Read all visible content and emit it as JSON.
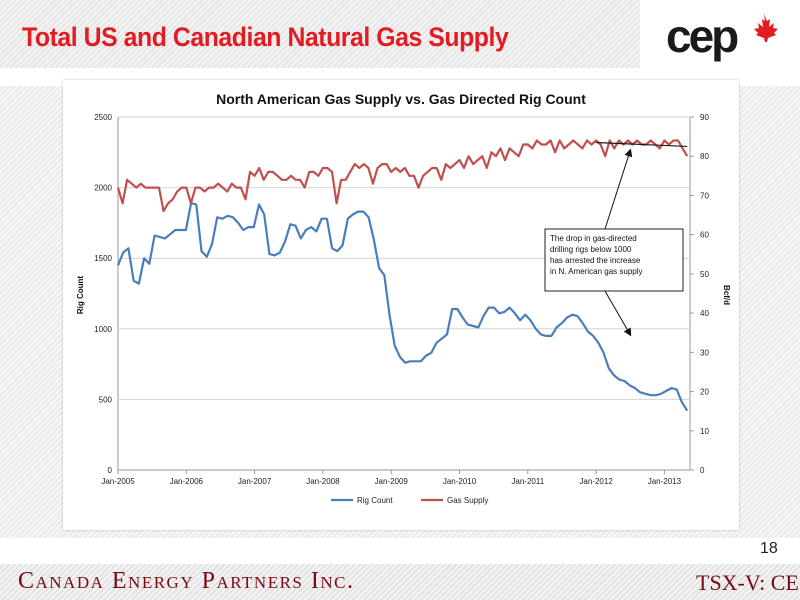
{
  "slide": {
    "title": "Total US and Canadian Natural Gas Supply",
    "logo_text": "cep",
    "page_number": "18",
    "company": "Canada Energy Partners Inc.",
    "ticker": "TSX-V: CE",
    "colors": {
      "title": "#e31b23",
      "company": "#7a0a10",
      "logo": "#1a1a1a",
      "maple_leaf": "#e31b23"
    }
  },
  "chart_data": {
    "type": "line",
    "title": "North American Gas Supply vs. Gas Directed Rig Count",
    "ylabel": "Rig Count",
    "y2label": "Bcf/d",
    "ylim": [
      0,
      2500
    ],
    "y2lim": [
      0,
      90
    ],
    "yticks": [
      "0",
      "500",
      "1000",
      "1500",
      "2000",
      "2500"
    ],
    "y2ticks": [
      "0",
      "10",
      "20",
      "30",
      "40",
      "50",
      "60",
      "70",
      "80",
      "90"
    ],
    "xticks": [
      "Jan-2005",
      "Jan-2006",
      "Jan-2007",
      "Jan-2008",
      "Jan-2009",
      "Jan-2010",
      "Jan-2011",
      "Jan-2012",
      "Jan-2013"
    ],
    "grid": "horizontal",
    "legend_position": "bottom",
    "start_month": "Jan-2005",
    "series": [
      {
        "name": "Rig Count",
        "axis": "left",
        "color": "#4a7ebb",
        "values": [
          1450,
          1540,
          1570,
          1340,
          1320,
          1500,
          1460,
          1660,
          1650,
          1640,
          1670,
          1700,
          1700,
          1700,
          1890,
          1880,
          1550,
          1510,
          1600,
          1790,
          1780,
          1800,
          1790,
          1750,
          1700,
          1720,
          1720,
          1880,
          1810,
          1530,
          1520,
          1540,
          1620,
          1740,
          1730,
          1640,
          1700,
          1720,
          1690,
          1780,
          1780,
          1570,
          1550,
          1590,
          1780,
          1810,
          1830,
          1830,
          1790,
          1630,
          1430,
          1380,
          1100,
          880,
          800,
          760,
          770,
          770,
          770,
          810,
          830,
          900,
          930,
          960,
          1140,
          1140,
          1080,
          1030,
          1020,
          1010,
          1090,
          1150,
          1150,
          1110,
          1120,
          1150,
          1110,
          1060,
          1100,
          1060,
          1000,
          960,
          950,
          950,
          1010,
          1040,
          1080,
          1100,
          1090,
          1040,
          980,
          950,
          900,
          830,
          720,
          670,
          640,
          630,
          600,
          580,
          550,
          540,
          530,
          530,
          540,
          560,
          580,
          570,
          480,
          420
        ]
      },
      {
        "name": "Gas Supply",
        "axis": "right",
        "color": "#c0504d",
        "values": [
          72,
          68,
          74,
          73,
          72,
          73,
          72,
          72,
          72,
          72,
          66,
          68,
          69,
          71,
          72,
          72,
          68,
          72,
          72,
          71,
          72,
          72,
          73,
          72,
          71,
          73,
          72,
          72,
          69,
          76,
          75,
          77,
          74,
          76,
          76,
          75,
          74,
          74,
          75,
          74,
          74,
          72,
          76,
          76,
          75,
          77,
          77,
          76,
          68,
          74,
          74,
          76,
          78,
          77,
          78,
          77,
          73,
          77,
          78,
          78,
          76,
          77,
          76,
          77,
          75,
          75,
          72,
          75,
          76,
          77,
          77,
          74,
          78,
          77,
          78,
          79,
          77,
          80,
          78,
          79,
          80,
          77,
          81,
          80,
          82,
          79,
          82,
          81,
          80,
          83,
          83,
          82,
          84,
          83,
          83,
          84,
          81,
          84,
          82,
          83,
          84,
          83,
          82,
          84,
          83,
          84,
          83,
          80,
          84,
          82,
          84,
          83,
          84,
          83,
          84,
          83,
          83,
          84,
          83,
          82,
          84,
          83,
          84,
          84,
          82,
          80
        ]
      }
    ],
    "trendline": {
      "axis": "right",
      "from_month": 84,
      "to_month": 100,
      "from_value": 83.5,
      "to_value": 82.5,
      "color": "#1a1a1a"
    },
    "annotation": {
      "lines": [
        "The drop in gas-directed",
        "drilling rigs below 1000",
        "has arrested the increase",
        "in N. American gas supply"
      ],
      "arrow_up_to": {
        "month": 90,
        "value_right": 82.5
      },
      "arrow_down_to": {
        "month": 90,
        "value_left": 980
      }
    }
  }
}
